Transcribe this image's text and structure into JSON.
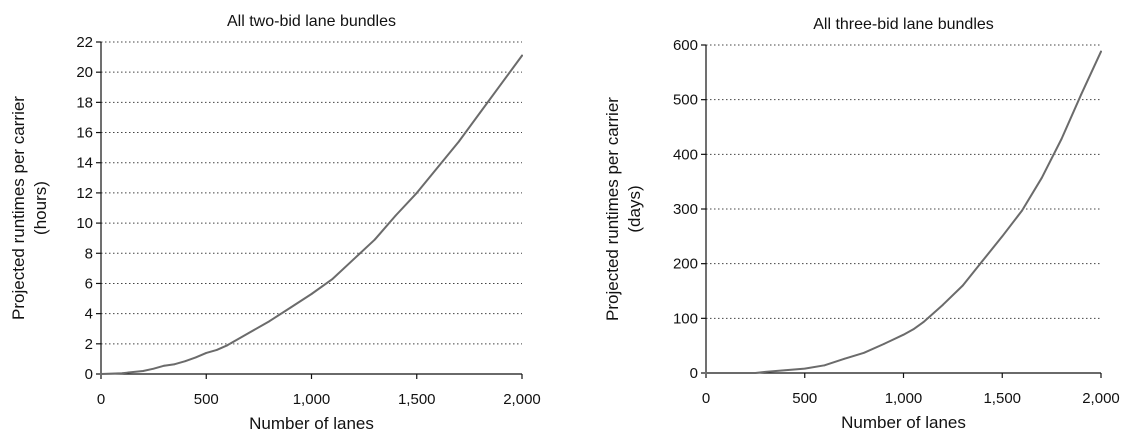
{
  "chart_data": [
    {
      "type": "line",
      "title": "All two-bid lane bundles",
      "xlabel": "Number of lanes",
      "ylabel": "Projected runtimes per carrier",
      "ylabel2": "(hours)",
      "xlim": [
        0,
        2000
      ],
      "ylim": [
        0,
        22
      ],
      "xticks": [
        0,
        500,
        1000,
        1500,
        2000
      ],
      "xtick_labels": [
        "0",
        "500",
        "1,000",
        "1,500",
        "2,000"
      ],
      "yticks": [
        0,
        2,
        4,
        6,
        8,
        10,
        12,
        14,
        16,
        18,
        20,
        22
      ],
      "ytick_labels": [
        "0",
        "2",
        "4",
        "6",
        "8",
        "10",
        "12",
        "14",
        "16",
        "18",
        "20",
        "22"
      ],
      "grid": "horizontal dotted",
      "series": [
        {
          "x": [
            0,
            100,
            200,
            250,
            300,
            350,
            400,
            450,
            500,
            550,
            600,
            700,
            800,
            900,
            1000,
            1100,
            1200,
            1300,
            1400,
            1500,
            1600,
            1700,
            1800,
            1900,
            2000
          ],
          "y": [
            0,
            0.05,
            0.2,
            0.35,
            0.55,
            0.65,
            0.85,
            1.1,
            1.4,
            1.6,
            1.9,
            2.7,
            3.5,
            4.4,
            5.3,
            6.3,
            7.6,
            8.9,
            10.5,
            12.0,
            13.7,
            15.4,
            17.3,
            19.2,
            21.1
          ]
        }
      ]
    },
    {
      "type": "line",
      "title": "All three-bid lane bundles",
      "xlabel": "Number of lanes",
      "ylabel": "Projected runtimes per carrier",
      "ylabel2": "(days)",
      "xlim": [
        0,
        2000
      ],
      "ylim": [
        0,
        600
      ],
      "xticks": [
        0,
        500,
        1000,
        1500,
        2000
      ],
      "xtick_labels": [
        "0",
        "500",
        "1,000",
        "1,500",
        "2,000"
      ],
      "yticks": [
        0,
        100,
        200,
        300,
        400,
        500,
        600
      ],
      "ytick_labels": [
        "0",
        "100",
        "200",
        "300",
        "400",
        "500",
        "600"
      ],
      "grid": "horizontal dotted",
      "series": [
        {
          "x": [
            0,
            250,
            300,
            400,
            500,
            600,
            700,
            800,
            900,
            1000,
            1050,
            1100,
            1200,
            1300,
            1400,
            1500,
            1600,
            1700,
            1800,
            1900,
            2000
          ],
          "y": [
            0,
            0,
            2,
            5,
            8,
            14,
            26,
            37,
            53,
            70,
            80,
            93,
            125,
            160,
            205,
            250,
            297,
            357,
            428,
            510,
            588
          ]
        }
      ]
    }
  ]
}
